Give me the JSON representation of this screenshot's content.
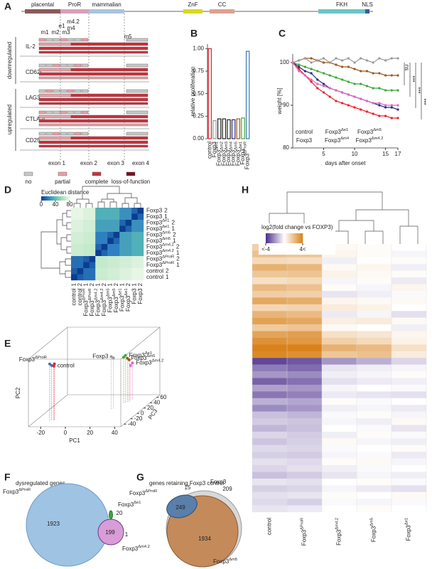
{
  "panel_labels": [
    "A",
    "B",
    "C",
    "D",
    "E",
    "F",
    "G",
    "H"
  ],
  "panel_a": {
    "domains": [
      "placental",
      "ProR",
      "mammalian",
      "ZnF",
      "CC",
      "FKH",
      "NLS"
    ],
    "mutations": [
      "m1",
      "m2",
      "m3",
      "e1",
      "m4",
      "m4.2",
      "m5"
    ],
    "group_labels": [
      "downregulated",
      "upregulated"
    ],
    "genes": [
      "IL-2",
      "CD62L",
      "LAG3",
      "CTLA-4",
      "CD25"
    ],
    "exons": [
      "exon 1",
      "exon 2",
      "exon 3",
      "exon 4"
    ],
    "legend": [
      {
        "label": "no",
        "color": "#c8c8c8"
      },
      {
        "label": "partial",
        "color": "#e8a0a8"
      },
      {
        "label": "complete",
        "color": "#c8323c"
      },
      {
        "label": "loss-of-function",
        "color": "#7a1020"
      }
    ]
  },
  "chart_data": [
    {
      "type": "bar",
      "ylabel": "relative proliferation",
      "categories": [
        {
          "name": "control"
        },
        {
          "name": "Foxp3"
        },
        {
          "name": "Foxp3",
          "sup": "Δm1"
        },
        {
          "name": "Foxp3",
          "sup": "Δm2"
        },
        {
          "name": "Foxp3",
          "sup": "Δm3"
        },
        {
          "name": "Foxp3",
          "sup": "Δm4"
        },
        {
          "name": "Foxp3",
          "sup": "Δm5"
        },
        {
          "name": "Foxp3",
          "sup": "Δe1"
        },
        {
          "name": "Foxp3",
          "sup": "ΔProR"
        }
      ],
      "values": [
        1.0,
        0.2,
        0.22,
        0.22,
        0.21,
        0.21,
        0.22,
        0.23,
        0.97
      ],
      "colors": [
        "#e8202a",
        "#9a9a9a",
        "#222222",
        "#222222",
        "#222222",
        "#2a2a8a",
        "#a0581c",
        "#3aa83a",
        "#3b78b0"
      ],
      "ylim": [
        0,
        1.05
      ],
      "yticks": [
        {
          "value": 0,
          "label": "0.00"
        },
        {
          "value": 0.25,
          "label": "0.25"
        },
        {
          "value": 0.5,
          "label": "0.50"
        },
        {
          "value": 0.75,
          "label": "0.75"
        },
        {
          "value": 1,
          "label": "1.00"
        }
      ]
    },
    {
      "type": "line",
      "ylabel": "weight [%]",
      "xlabel": "days after onset",
      "x": [
        0,
        1,
        2,
        3,
        4,
        5,
        6,
        7,
        8,
        9,
        10,
        11,
        12,
        13,
        14,
        15,
        16,
        17
      ],
      "series": [
        {
          "name": "control",
          "color": "#e8202a",
          "values": [
            100,
            98.5,
            97,
            95.5,
            94,
            93,
            92,
            91,
            90.5,
            90,
            89.5,
            89,
            88.5,
            88,
            87.5,
            87.5,
            87,
            87
          ]
        },
        {
          "name": "Foxp3",
          "sup": "Δe1",
          "color": "#3aa83a",
          "values": [
            100,
            99.5,
            99,
            98.5,
            98,
            97.5,
            97,
            96.5,
            96,
            95.5,
            95,
            95,
            94.5,
            94,
            94,
            93.5,
            93.5,
            93.5
          ]
        },
        {
          "name": "Foxp3",
          "sup": "Δm5",
          "color": "#a0581c",
          "values": [
            100,
            100.5,
            101,
            101,
            100.5,
            100,
            100,
            99.5,
            99,
            99,
            98.5,
            98,
            98,
            97.5,
            97.5,
            97,
            97,
            97
          ]
        },
        {
          "name": "Foxp3",
          "color": "#9a9a9a",
          "values": [
            100,
            100.5,
            101,
            100,
            100.5,
            101,
            100,
            101,
            100.5,
            101,
            100,
            101,
            100.5,
            100,
            101,
            100.5,
            101,
            101
          ]
        },
        {
          "name": "Foxp3",
          "sup": "Δm4",
          "color": "#2a2a8a",
          "values": [
            100,
            99,
            98,
            97.5,
            96,
            95,
            94,
            93.5,
            93,
            92.5,
            92,
            91.5,
            91,
            90.5,
            90,
            89.5,
            89.5,
            89
          ]
        },
        {
          "name": "Foxp3",
          "sup": "Δm4.2",
          "color": "#e066c0",
          "values": [
            100,
            98,
            97,
            96,
            95,
            94.5,
            94,
            93.5,
            93,
            92.5,
            92,
            91.5,
            91,
            90.5,
            90.5,
            90,
            90,
            90
          ]
        }
      ],
      "xlim": [
        0,
        17
      ],
      "ylim": [
        80,
        102
      ],
      "xticks": [
        5,
        10,
        15,
        17
      ],
      "yticks": [
        80,
        90,
        100
      ],
      "annotations": [
        "ns",
        "***",
        "***",
        "***"
      ]
    }
  ],
  "panel_d": {
    "colorbar": {
      "title": "Euclidean distance",
      "lim": [
        0,
        80
      ],
      "ticks": [
        0,
        40,
        80
      ]
    },
    "row_labels": [
      {
        "name": "Foxp3",
        "rep": "2",
        "color": "#9a9a9a"
      },
      {
        "name": "Foxp3",
        "rep": "1",
        "color": "#9a9a9a"
      },
      {
        "name": "Foxp3",
        "sup": "Δe1",
        "rep": "2",
        "color": "#3aa83a"
      },
      {
        "name": "Foxp3",
        "sup": "Δe1",
        "rep": "1",
        "color": "#3aa83a"
      },
      {
        "name": "Foxp3",
        "sup": "Δm5",
        "rep": "2",
        "color": "#a0581c"
      },
      {
        "name": "Foxp3",
        "sup": "Δm5",
        "rep": "1",
        "color": "#a0581c"
      },
      {
        "name": "Foxp3",
        "sup": "Δm4.2",
        "rep": "2",
        "color": "#e066c0"
      },
      {
        "name": "Foxp3",
        "sup": "Δm4.2",
        "rep": "1",
        "color": "#e066c0"
      },
      {
        "name": "Foxp3",
        "sup": "ΔProR",
        "rep": "2",
        "color": "#3b78b0"
      },
      {
        "name": "Foxp3",
        "sup": "ΔProR",
        "rep": "1",
        "color": "#3b78b0"
      },
      {
        "name": "control",
        "rep": "2",
        "color": "#e8202a"
      },
      {
        "name": "control",
        "rep": "1",
        "color": "#e8202a"
      }
    ],
    "matrix": [
      [
        0,
        12,
        25,
        25,
        35,
        35,
        35,
        35,
        75,
        75,
        78,
        78
      ],
      [
        12,
        0,
        25,
        25,
        35,
        35,
        35,
        35,
        75,
        75,
        78,
        78
      ],
      [
        25,
        25,
        0,
        12,
        30,
        30,
        30,
        30,
        72,
        72,
        75,
        75
      ],
      [
        25,
        25,
        12,
        0,
        30,
        30,
        30,
        30,
        72,
        72,
        75,
        75
      ],
      [
        35,
        35,
        30,
        30,
        0,
        12,
        20,
        20,
        70,
        70,
        72,
        72
      ],
      [
        35,
        35,
        30,
        30,
        12,
        0,
        20,
        20,
        70,
        70,
        72,
        72
      ],
      [
        35,
        35,
        30,
        30,
        20,
        20,
        0,
        12,
        68,
        68,
        70,
        70
      ],
      [
        35,
        35,
        30,
        30,
        20,
        20,
        12,
        0,
        68,
        68,
        70,
        70
      ],
      [
        75,
        75,
        72,
        72,
        70,
        70,
        68,
        68,
        0,
        10,
        15,
        15
      ],
      [
        75,
        75,
        72,
        72,
        70,
        70,
        68,
        68,
        10,
        0,
        15,
        15
      ],
      [
        78,
        78,
        75,
        75,
        72,
        72,
        70,
        70,
        15,
        15,
        0,
        10
      ],
      [
        78,
        78,
        75,
        75,
        72,
        72,
        70,
        70,
        15,
        15,
        10,
        0
      ]
    ]
  },
  "panel_e": {
    "xlabel": "PC1",
    "ylabel": "PC2",
    "zlabel": "PC3",
    "xlim": [
      -30,
      45
    ],
    "ylim": [
      -40,
      60
    ],
    "zlim": [
      -50,
      70
    ],
    "xticks": [
      -20,
      0,
      20,
      40
    ],
    "zticks": [
      -40,
      -20,
      0,
      20,
      40,
      60
    ],
    "groups": [
      {
        "name": "Foxp3",
        "sup": "ΔProR",
        "color": "#3b78b0"
      },
      {
        "name": "control",
        "color": "#e8202a"
      },
      {
        "name": "Foxp3",
        "color": "#9a9a9a"
      },
      {
        "name": "Foxp3",
        "sup": "Δe1",
        "color": "#3aa83a"
      },
      {
        "name": "Foxp3",
        "sup": "Δm5",
        "color": "#a0581c"
      },
      {
        "name": "Foxp3",
        "sup": "Δm4.2",
        "color": "#e066c0"
      }
    ],
    "points": [
      {
        "group": 0,
        "pc1": -18,
        "pc2": 45,
        "pc3": -30
      },
      {
        "group": 0,
        "pc1": -17,
        "pc2": 42,
        "pc3": -28
      },
      {
        "group": 1,
        "pc1": -16,
        "pc2": 40,
        "pc3": -25
      },
      {
        "group": 1,
        "pc1": -15,
        "pc2": 44,
        "pc3": -27
      },
      {
        "group": 2,
        "pc1": 20,
        "pc2": 38,
        "pc3": 15
      },
      {
        "group": 2,
        "pc1": 21,
        "pc2": 35,
        "pc3": 18
      },
      {
        "group": 3,
        "pc1": 25,
        "pc2": 30,
        "pc3": 40
      },
      {
        "group": 3,
        "pc1": 24,
        "pc2": 28,
        "pc3": 38
      },
      {
        "group": 4,
        "pc1": 26,
        "pc2": 25,
        "pc3": 42
      },
      {
        "group": 4,
        "pc1": 27,
        "pc2": 22,
        "pc3": 44
      },
      {
        "group": 5,
        "pc1": 28,
        "pc2": 15,
        "pc3": 50
      },
      {
        "group": 5,
        "pc1": 27,
        "pc2": 12,
        "pc3": 48
      }
    ]
  },
  "panel_f": {
    "title": "dysregulated genes",
    "sets": [
      {
        "name": "Foxp3",
        "sup": "ΔProR",
        "color": "#3b78b0"
      },
      {
        "name": "Foxp3",
        "sup": "Δe1",
        "color": "#3aa83a"
      },
      {
        "name": "Foxp3",
        "sup": "Δm4.2",
        "color": "#e066c0"
      }
    ],
    "counts": [
      1923,
      199,
      20,
      1
    ]
  },
  "panel_g": {
    "title": "genes retaining Foxp3 control",
    "sets": [
      {
        "name": "Foxp3",
        "sup": "ΔProR",
        "color": "#3b78b0"
      },
      {
        "name": "Foxp3",
        "color": "#9a9a9a"
      },
      {
        "name": "Foxp3",
        "sup": "Δm5",
        "color": "#a0581c"
      }
    ],
    "counts": [
      15,
      209,
      249,
      1934
    ]
  },
  "panel_h": {
    "colorbar": {
      "title": "log2(fold change vs FOXP3)",
      "lim": [
        -4,
        4
      ],
      "ticks": [
        {
          "value": -4,
          "label": "<-4"
        },
        {
          "value": 4,
          "label": "4<"
        }
      ]
    },
    "groups": [
      {
        "name": "control",
        "color": "#e8202a"
      },
      {
        "name": "Foxp3",
        "sup": "ΔProR",
        "color": "#3b78b0"
      },
      {
        "name": "Foxp3",
        "sup": "Δm4.2",
        "color": "#e066c0"
      },
      {
        "name": "Foxp3",
        "sup": "Δm5",
        "color": "#a0581c"
      },
      {
        "name": "Foxp3",
        "sup": "Δe1",
        "color": "#3aa83a"
      }
    ],
    "values": [
      [
        1.5,
        1.4,
        0.2,
        0.1,
        0
      ],
      [
        2.0,
        1.8,
        0.3,
        0.1,
        -0.2
      ],
      [
        1.2,
        1.1,
        -0.3,
        0,
        0.1
      ],
      [
        2.5,
        2.3,
        0.2,
        0.3,
        -0.3
      ],
      [
        1.8,
        1.9,
        0.4,
        0.2,
        0.1
      ],
      [
        1.0,
        1.2,
        -0.2,
        0.1,
        -0.4
      ],
      [
        2.2,
        2.0,
        0.1,
        -0.2,
        0.3
      ],
      [
        1.6,
        1.5,
        -0.5,
        -0.3,
        -0.1
      ],
      [
        2.8,
        2.6,
        0.3,
        0.2,
        0.2
      ],
      [
        1.3,
        1.4,
        0.6,
        0.4,
        0
      ],
      [
        2.4,
        2.2,
        -0.4,
        -0.2,
        -0.6
      ],
      [
        3.0,
        2.8,
        0.5,
        0.6,
        0.2
      ],
      [
        1.7,
        1.9,
        0.2,
        0,
        -0.3
      ],
      [
        2.9,
        3.1,
        1.0,
        0.8,
        0.3
      ],
      [
        3.5,
        3.3,
        1.5,
        1.2,
        0.4
      ],
      [
        4,
        4,
        2.5,
        2.2,
        1.0
      ],
      [
        3.8,
        3.6,
        1.8,
        2.0,
        0.6
      ],
      [
        -3.5,
        -3.2,
        -2.0,
        -1.5,
        -0.8
      ],
      [
        -2.5,
        -2.8,
        -0.5,
        -0.3,
        -0.2
      ],
      [
        -2.0,
        -2.2,
        -0.3,
        -0.2,
        0.1
      ],
      [
        -3.0,
        -2.7,
        -0.6,
        -0.4,
        -0.3
      ],
      [
        -1.8,
        -2.0,
        -0.2,
        0,
        -0.1
      ],
      [
        -2.6,
        -2.4,
        -0.4,
        -0.5,
        -0.6
      ],
      [
        -1.5,
        -1.7,
        0.1,
        -0.1,
        0
      ],
      [
        -2.2,
        -2.0,
        -0.3,
        -0.2,
        -0.4
      ],
      [
        -1.2,
        -1.4,
        -0.1,
        0.1,
        -0.2
      ],
      [
        -1.0,
        -1.1,
        -0.2,
        -0.3,
        0.2
      ],
      [
        -1.4,
        -1.2,
        0,
        -0.1,
        -0.5
      ],
      [
        -0.8,
        -1.0,
        -0.3,
        0.1,
        -0.1
      ],
      [
        -1.1,
        -0.9,
        0.2,
        -0.2,
        -0.3
      ],
      [
        -0.7,
        -0.8,
        -0.1,
        0,
        0.1
      ],
      [
        -0.9,
        -1.0,
        -0.2,
        -0.1,
        -0.4
      ],
      [
        -0.6,
        -0.7,
        0.1,
        0.2,
        -0.2
      ],
      [
        -0.8,
        -0.6,
        -0.3,
        -0.1,
        0
      ],
      [
        -1.2,
        -1.0,
        -0.5,
        -0.2,
        -0.3
      ],
      [
        -0.5,
        -0.6,
        0,
        0.1,
        -0.1
      ],
      [
        -0.9,
        -0.8,
        -0.2,
        -0.4,
        -0.6
      ],
      [
        -0.6,
        -0.5,
        0.1,
        0,
        0.2
      ],
      [
        -0.7,
        -0.9,
        -0.1,
        -0.2,
        -0.1
      ],
      [
        -0.5,
        -0.4,
        0,
        0.1,
        0
      ]
    ]
  }
}
